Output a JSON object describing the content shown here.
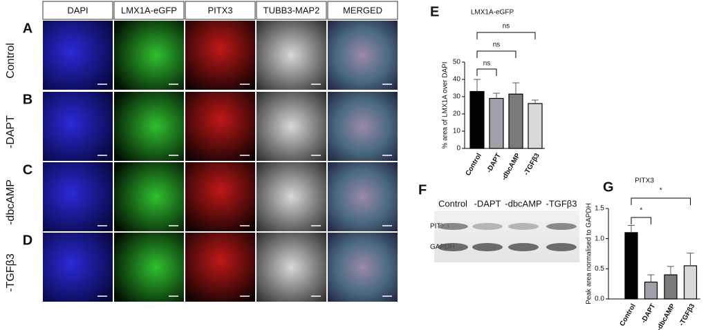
{
  "image_grid": {
    "columns": [
      "DAPI",
      "LMX1A-eGFP",
      "PITX3",
      "TUBB3-MAP2",
      "MERGED"
    ],
    "rows": [
      {
        "letter": "A",
        "label": "Control"
      },
      {
        "letter": "B",
        "label": "-DAPT"
      },
      {
        "letter": "C",
        "label": "-dbcAMP"
      },
      {
        "letter": "D",
        "label": "-TGFβ3"
      }
    ]
  },
  "blot": {
    "letter": "F",
    "lanes": [
      "Control",
      "-DAPT",
      "-dbcAMP",
      "-TGFβ3"
    ],
    "bands": [
      "PITX3",
      "GAPDH"
    ]
  },
  "chart_data": [
    {
      "type": "bar",
      "letter": "E",
      "title": "LMX1A-eGFP",
      "y_label": "% area of LMX1A over DAPI",
      "categories": [
        "Control",
        "-DAPT",
        "-dbcAMP",
        "-TGFβ3"
      ],
      "values": [
        33,
        29,
        31.5,
        26
      ],
      "errors": [
        7,
        3,
        6.5,
        2
      ],
      "colors": [
        "#000000",
        "#a0a0a8",
        "#7a7a7a",
        "#d9d9d9"
      ],
      "ylim": [
        0,
        50
      ],
      "yticks": [
        0,
        10,
        20,
        30,
        40,
        50
      ],
      "annotations": [
        "ns",
        "ns",
        "ns"
      ]
    },
    {
      "type": "bar",
      "letter": "G",
      "title": "PITX3",
      "y_label": "Peak area normalised to GAPDH",
      "categories": [
        "Control",
        "-DAPT",
        "-dbcAMP",
        "-TGFβ3"
      ],
      "values": [
        1.1,
        0.28,
        0.4,
        0.55
      ],
      "errors": [
        0.12,
        0.12,
        0.14,
        0.21
      ],
      "colors": [
        "#000000",
        "#a0a0a8",
        "#7a7a7a",
        "#d9d9d9"
      ],
      "ylim": [
        0,
        1.5
      ],
      "yticks": [
        {
          "value": 0,
          "label": "0.0"
        },
        0.5,
        {
          "value": 1,
          "label": "1.0"
        },
        1.5
      ],
      "annotations": [
        "*",
        "*"
      ]
    }
  ]
}
